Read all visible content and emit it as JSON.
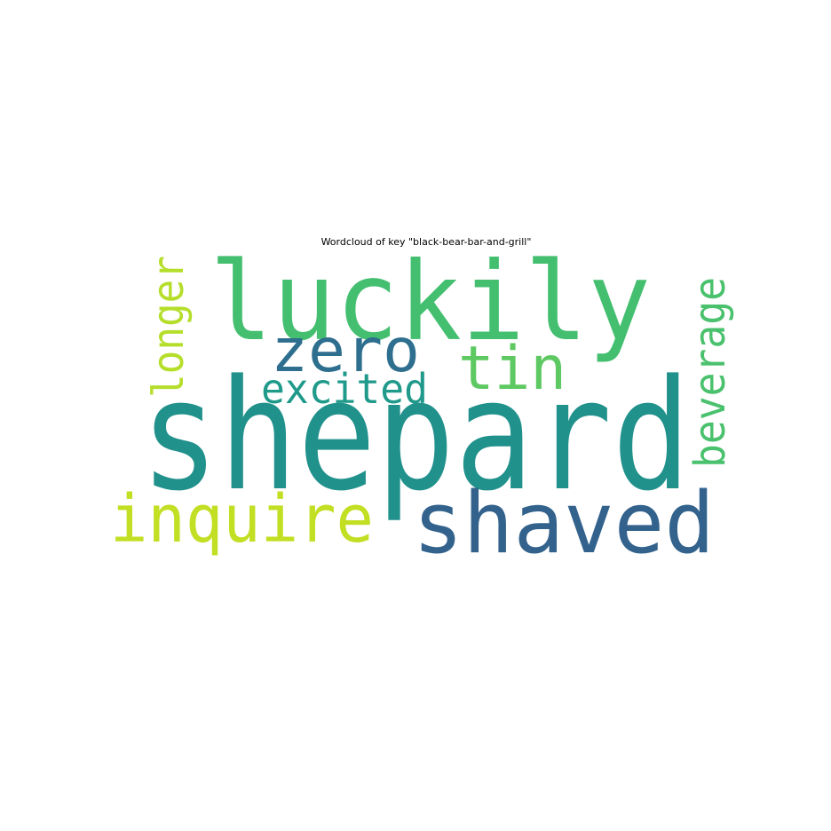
{
  "chart_data": {
    "type": "wordcloud",
    "title": "Wordcloud of key \"black-bear-bar-and-grill\"",
    "words": [
      {
        "text": "shepard",
        "weight": 1.0,
        "color": "#21918c",
        "orientation": "horizontal"
      },
      {
        "text": "luckily",
        "weight": 0.8,
        "color": "#44bf70",
        "orientation": "horizontal"
      },
      {
        "text": "shaved",
        "weight": 0.62,
        "color": "#33638d",
        "orientation": "horizontal"
      },
      {
        "text": "inquire",
        "weight": 0.5,
        "color": "#c2df23",
        "orientation": "horizontal"
      },
      {
        "text": "zero",
        "weight": 0.46,
        "color": "#2e6e8e",
        "orientation": "horizontal"
      },
      {
        "text": "tin",
        "weight": 0.46,
        "color": "#5ec962",
        "orientation": "horizontal"
      },
      {
        "text": "beverage",
        "weight": 0.33,
        "color": "#4ac16d",
        "orientation": "vertical"
      },
      {
        "text": "longer",
        "weight": 0.33,
        "color": "#b5de2b",
        "orientation": "vertical"
      },
      {
        "text": "excited",
        "weight": 0.32,
        "color": "#1f9a8a",
        "orientation": "horizontal"
      }
    ]
  }
}
